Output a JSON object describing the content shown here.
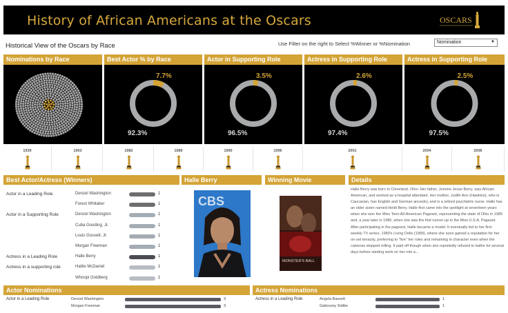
{
  "header": {
    "title": "History of African Americans at the Oscars",
    "logo_text": "OSCARS"
  },
  "subtitle": "Historical View of the Oscars by Race",
  "filter": {
    "hint": "Use Filter on the right to Select %Winner or %Nomination",
    "selected": "Nomination"
  },
  "panels": [
    {
      "title": "Nominations by Race"
    },
    {
      "title": "Best Actor %  by Race",
      "small": "7.7%",
      "large": "92.3%",
      "small_frac": 0.077
    },
    {
      "title": "Actor in Supporting Role",
      "small": "3.5%",
      "large": "96.5%",
      "small_frac": 0.035
    },
    {
      "title": "Actress in Supporting Role",
      "small": "2.6%",
      "large": "97.4%",
      "small_frac": 0.026
    },
    {
      "title": "Actress in Supporting Role",
      "small": "2.5%",
      "large": "97.5%",
      "small_frac": 0.025
    }
  ],
  "years": [
    "1939",
    "1963",
    "1982",
    "1989",
    "1990",
    "1996",
    "2001",
    "2004",
    "2006"
  ],
  "winners": {
    "title": "Best Actor/Actress (Winners)",
    "rows": [
      {
        "category": "Actor in a Leading Role",
        "name": "Denzel Washington",
        "value": "1",
        "color": "#6e6e6e"
      },
      {
        "category": "",
        "name": "Forest Whitaker",
        "value": "1",
        "color": "#6e6e6e"
      },
      {
        "category": "Actor in a Supporting Role",
        "name": "Denzel Washington",
        "value": "1",
        "color": "#a4acb4"
      },
      {
        "category": "",
        "name": "Cuba Gooding, Jr.",
        "value": "1",
        "color": "#a4acb4"
      },
      {
        "category": "",
        "name": "Louis Gossett, Jr.",
        "value": "1",
        "color": "#a4acb4"
      },
      {
        "category": "",
        "name": "Morgan Freeman",
        "value": "1",
        "color": "#a4acb4"
      },
      {
        "category": "Actress in a Leading Role",
        "name": "Halle Berry",
        "value": "1",
        "color": "#4b4b53"
      },
      {
        "category": "Actress in a supporting role",
        "name": "Hattie McDaniel",
        "value": "1",
        "color": "#b8bdc3"
      },
      {
        "category": "",
        "name": "Whoopi Goldberg",
        "value": "1",
        "color": "#b8bdc3"
      }
    ]
  },
  "halle": {
    "title": "Halle Berry",
    "backdrop_text": "CBS"
  },
  "movie": {
    "title": "Winning Movie",
    "poster_text": "MONSTER'S BALL"
  },
  "details": {
    "title": "Details",
    "text": "Halle Berry was born in Cleveland, Ohio. Her father, Jerome Jesse Berry, was African-American, and worked as a hospital attendant. Her mother, Judith Ann (Hawkins), who is Caucasian, has English and German ancestry, and is a retired psychiatric nurse. Halle has an older sister named Heidi Berry. Halle first came into the spotlight at seventeen years when she won the Miss Teen All-American Pageant, representing the state of Ohio in 1985 and, a year later in 1986, when she was the first runner-up in the Miss U.S.A. Pageant. After participating in the pageant, Halle became a model. It eventually led to her first weekly TV series, 1989's Living Dolls (1989), where she soon gained a reputation for her on-set tenacity, preferring to \"live\" her roles and remaining in character even when the cameras stopped rolling. It paid off though when she reportedly refused to bathe for several days before starting work on her role a..."
  },
  "actor_nominations": {
    "title": "Actor Nominations",
    "rows": [
      {
        "category": "Actor in a Leading Role",
        "name": "Denzel Washington",
        "value": "3",
        "frac": 1.0
      },
      {
        "category": "",
        "name": "Morgan Freeman",
        "value": "3",
        "frac": 1.0
      }
    ]
  },
  "actress_nominations": {
    "title": "Actress Nominations",
    "rows": [
      {
        "category": "Actress in a Leading Role",
        "name": "Angela Bassett",
        "value": "1",
        "frac": 1.0
      },
      {
        "category": "",
        "name": "Gabourey Sidibe",
        "value": "1",
        "frac": 1.0
      }
    ]
  },
  "colors": {
    "gold": "#d4a437",
    "black": "#000000",
    "ring_grey": "#a9aaab"
  }
}
